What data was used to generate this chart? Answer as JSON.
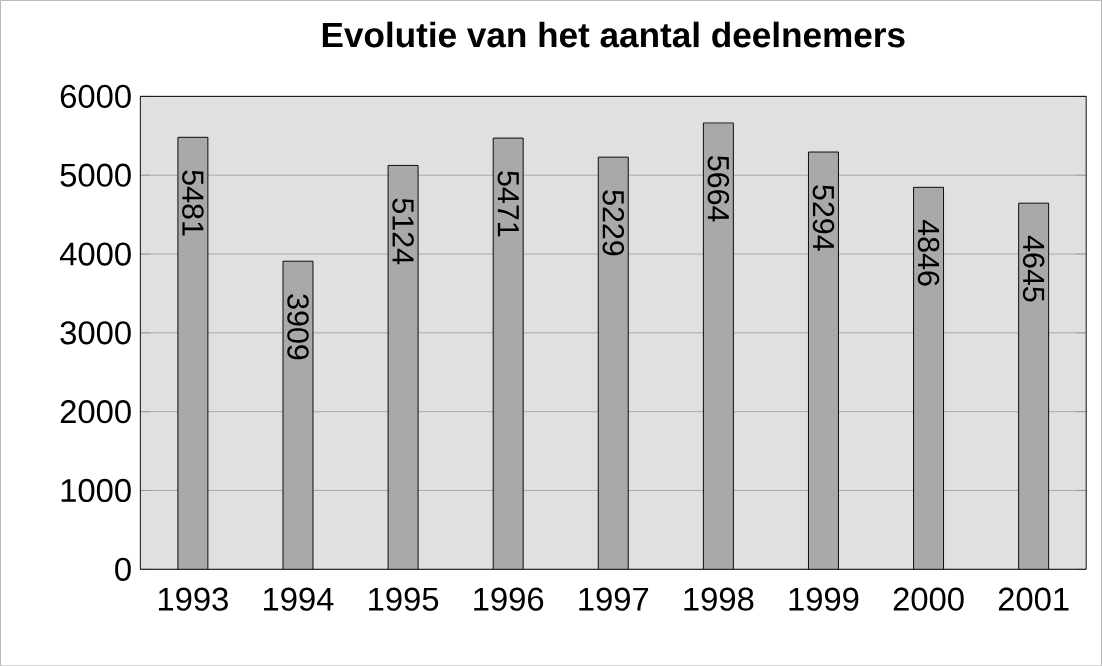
{
  "chart_data": {
    "type": "bar",
    "title": "Evolutie van het aantal deelnemers",
    "categories": [
      "1993",
      "1994",
      "1995",
      "1996",
      "1997",
      "1998",
      "1999",
      "2000",
      "2001"
    ],
    "values": [
      5481,
      3909,
      5124,
      5471,
      5229,
      5664,
      5294,
      4846,
      4645
    ],
    "color": "#a9a9a9",
    "ylim": [
      0,
      6000
    ],
    "yticks": [
      0,
      1000,
      2000,
      3000,
      4000,
      5000,
      6000
    ],
    "grid": "y",
    "data_labels": true
  }
}
